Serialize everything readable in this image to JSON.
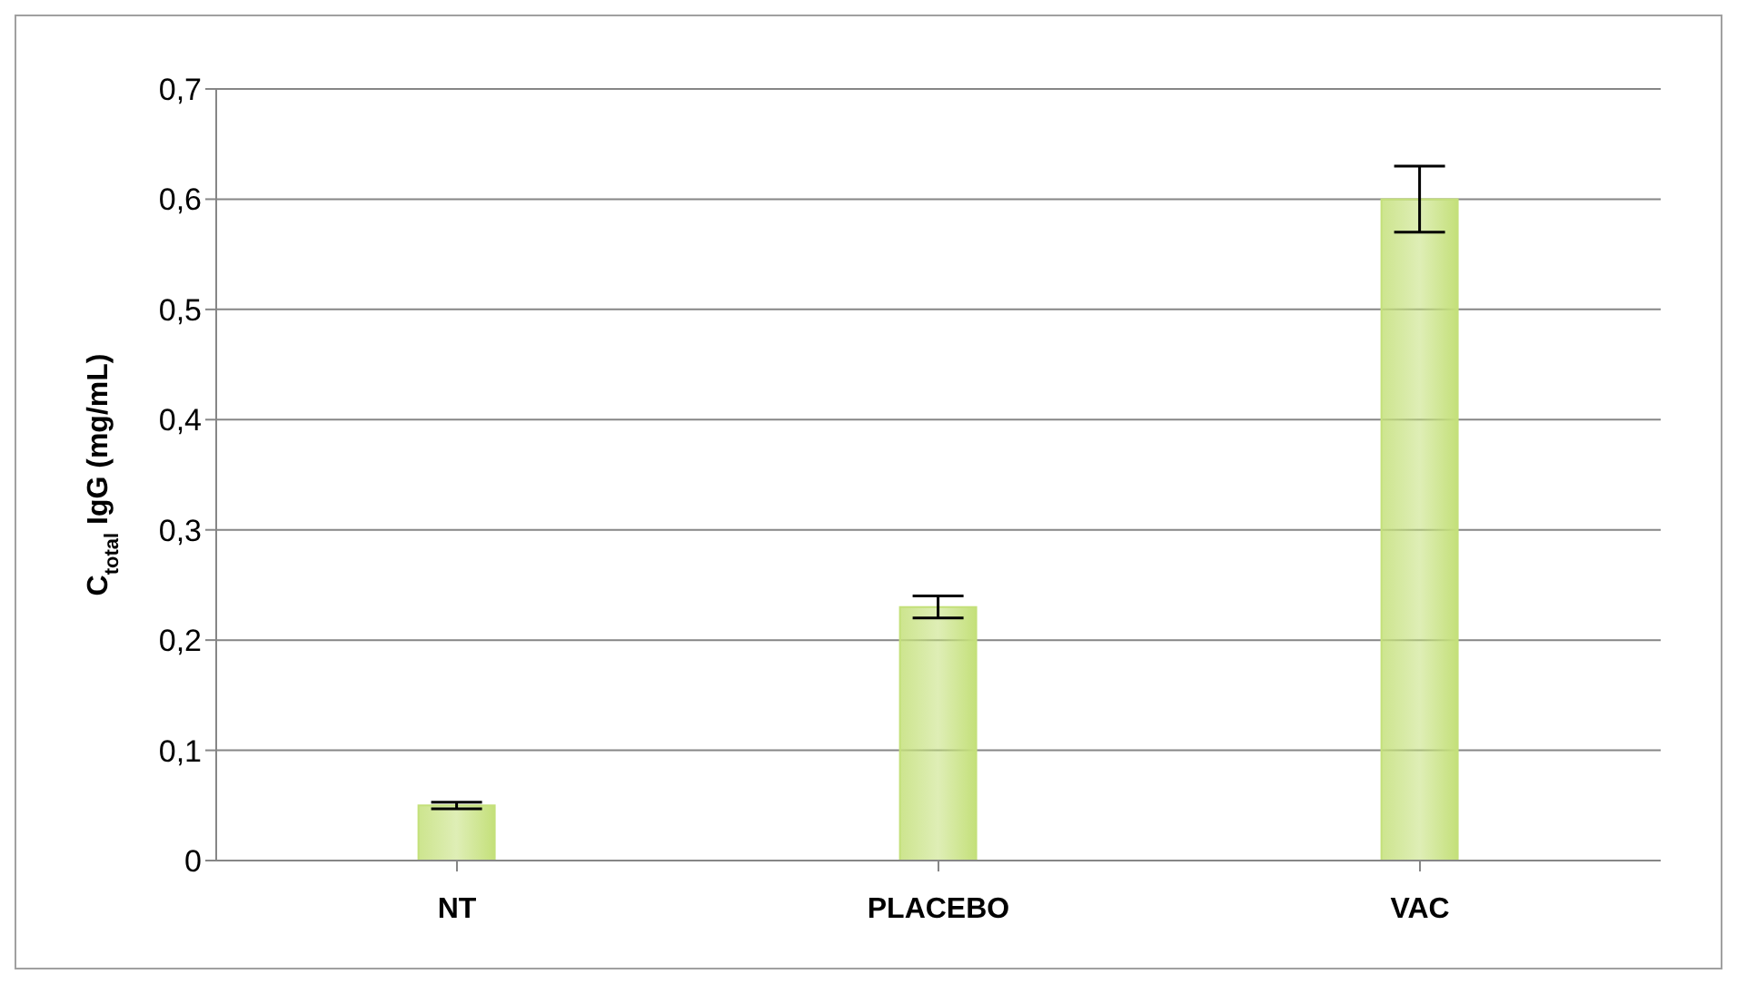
{
  "chart_data": {
    "type": "bar",
    "ylabel": "C$_{total}$ IgG (mg/mL)",
    "categories": [
      "NT",
      "PLACEBO",
      "VAC"
    ],
    "values": [
      0.05,
      0.23,
      0.6
    ],
    "errors": [
      0.003,
      0.01,
      0.03
    ],
    "color": "#c4e07a",
    "ylim": [
      0,
      0.7
    ],
    "yticks": [
      0,
      {
        "value": 0.1,
        "label": "0,1"
      },
      {
        "value": 0.2,
        "label": "0,2"
      },
      {
        "value": 0.3,
        "label": "0,3"
      },
      {
        "value": 0.4,
        "label": "0,4"
      },
      {
        "value": 0.5,
        "label": "0,5"
      },
      {
        "value": 0.6,
        "label": "0,6"
      },
      {
        "value": 0.7,
        "label": "0,7"
      }
    ],
    "grid": "y"
  }
}
